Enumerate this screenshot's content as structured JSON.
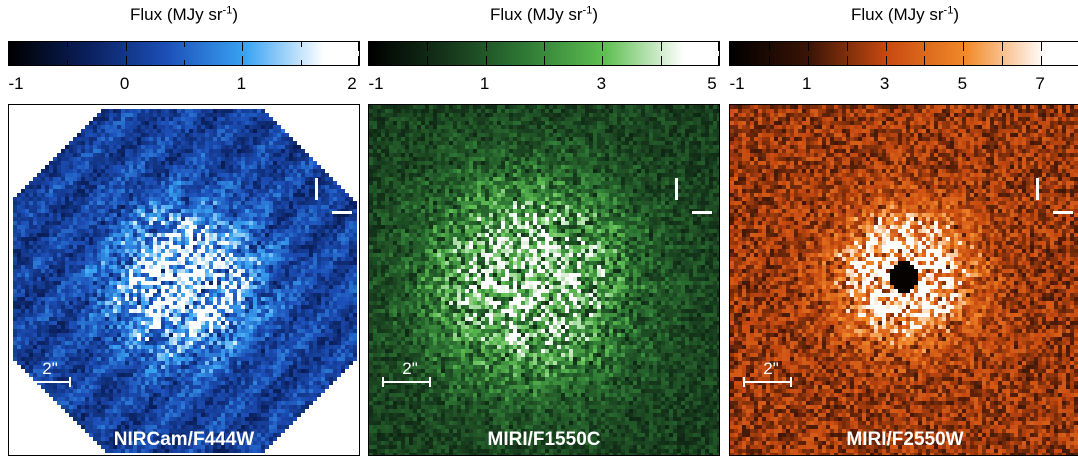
{
  "panels": [
    {
      "flux_label": "Flux (MJy sr",
      "flux_exp": "-1",
      "flux_close": ")",
      "tick_labels": [
        {
          "text": "-1",
          "value": -1
        },
        {
          "text": "0",
          "value": 0
        },
        {
          "text": "1",
          "value": 1
        },
        {
          "text": "2",
          "value": 2
        }
      ],
      "colorbar_range": [
        -1,
        2
      ],
      "colormap": [
        "#000000",
        "#0a1f5c",
        "#1c4fb8",
        "#39a3f2",
        "#ffffff"
      ],
      "instrument": "NIRCam/F444W",
      "scale_label": "2\""
    },
    {
      "flux_label": "Flux (MJy sr",
      "flux_exp": "-1",
      "flux_close": ")",
      "tick_labels": [
        {
          "text": "-1",
          "value": -1
        },
        {
          "text": "1",
          "value": 1
        },
        {
          "text": "3",
          "value": 3
        },
        {
          "text": "5",
          "value": 5
        }
      ],
      "colorbar_range": [
        -1,
        5
      ],
      "colormap": [
        "#000000",
        "#15361b",
        "#2f7a35",
        "#5fbf52",
        "#ffffff"
      ],
      "instrument": "MIRI/F1550C",
      "scale_label": "2\""
    },
    {
      "flux_label": "Flux (MJy sr",
      "flux_exp": "-1",
      "flux_close": ")",
      "tick_labels": [
        {
          "text": "-1",
          "value": -1
        },
        {
          "text": "1",
          "value": 1
        },
        {
          "text": "3",
          "value": 3
        },
        {
          "text": "5",
          "value": 5
        },
        {
          "text": "7",
          "value": 7
        }
      ],
      "colorbar_range": [
        -1,
        8
      ],
      "colormap": [
        "#000000",
        "#3a1406",
        "#c84a10",
        "#f28a2a",
        "#ffffff"
      ],
      "instrument": "MIRI/F2550W",
      "scale_label": "2\""
    }
  ]
}
